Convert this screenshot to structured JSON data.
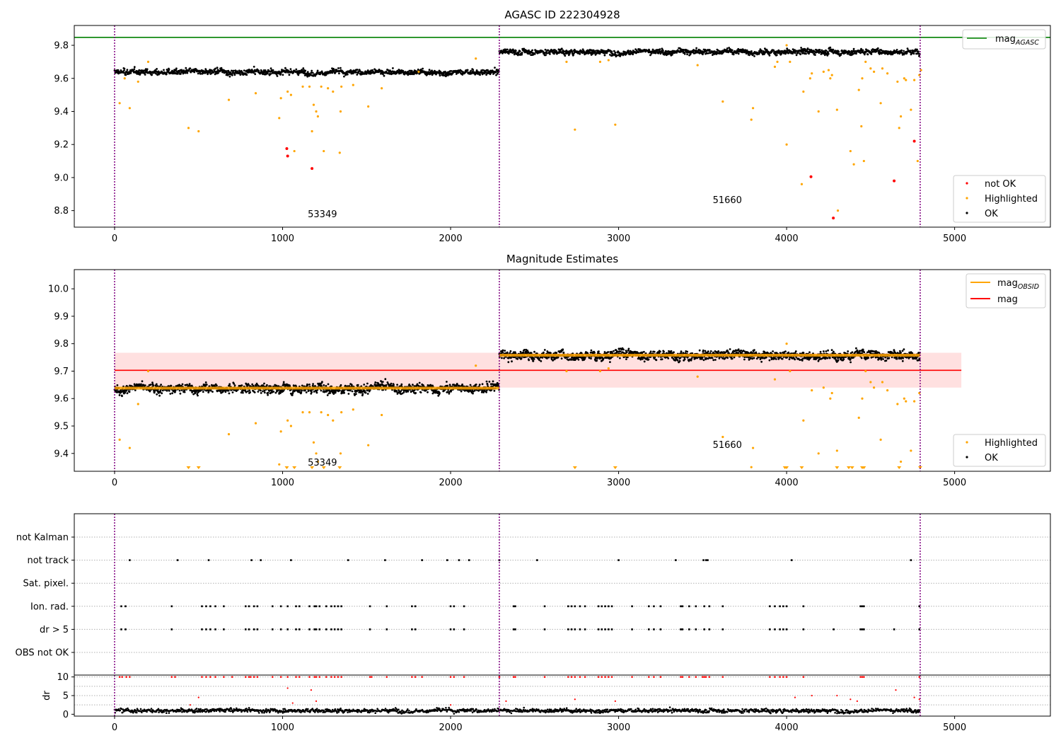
{
  "chart_data": [
    {
      "type": "scatter",
      "title": "AGASC ID 222304928",
      "xlim": [
        -240,
        5570
      ],
      "ylim": [
        8.7,
        9.92
      ],
      "xticks": [
        0,
        1000,
        2000,
        3000,
        4000,
        5000
      ],
      "yticks": [
        8.8,
        9.0,
        9.2,
        9.4,
        9.6,
        9.8
      ],
      "ytick_labels": [
        "8.8",
        "9.0",
        "9.2",
        "9.4",
        "9.6",
        "9.8"
      ],
      "grid": false,
      "vlines": [
        0,
        2290,
        4795
      ],
      "obsids": [
        {
          "label": "53349",
          "x": 1150,
          "y": 8.76
        },
        {
          "label": "51660",
          "x": 3560,
          "y": 8.845
        }
      ],
      "mag_agasc": 9.848,
      "segments": [
        {
          "x0": 0,
          "x1": 2290,
          "mean": 9.638
        },
        {
          "x0": 2290,
          "x1": 4795,
          "mean": 9.762
        }
      ],
      "series": [
        {
          "name": "not OK",
          "color": "#ff0000",
          "points": [
            [
              1025,
              9.175
            ],
            [
              1030,
              9.13
            ],
            [
              1175,
              9.055
            ],
            [
              4145,
              9.005
            ],
            [
              4278,
              8.755
            ],
            [
              4640,
              8.98
            ],
            [
              4760,
              9.22
            ]
          ]
        },
        {
          "name": "Highlighted",
          "color": "#ffa500",
          "points": [
            [
              30,
              9.45
            ],
            [
              90,
              9.42
            ],
            [
              60,
              9.6
            ],
            [
              140,
              9.58
            ],
            [
              200,
              9.7
            ],
            [
              440,
              9.3
            ],
            [
              500,
              9.28
            ],
            [
              680,
              9.47
            ],
            [
              840,
              9.51
            ],
            [
              980,
              9.36
            ],
            [
              990,
              9.48
            ],
            [
              1030,
              9.52
            ],
            [
              1050,
              9.5
            ],
            [
              1070,
              9.16
            ],
            [
              1120,
              9.55
            ],
            [
              1160,
              9.55
            ],
            [
              1175,
              9.28
            ],
            [
              1185,
              9.44
            ],
            [
              1200,
              9.4
            ],
            [
              1210,
              9.37
            ],
            [
              1230,
              9.55
            ],
            [
              1245,
              9.16
            ],
            [
              1270,
              9.54
            ],
            [
              1300,
              9.52
            ],
            [
              1340,
              9.15
            ],
            [
              1345,
              9.4
            ],
            [
              1350,
              9.55
            ],
            [
              1420,
              9.56
            ],
            [
              1510,
              9.43
            ],
            [
              1590,
              9.54
            ],
            [
              1810,
              9.64
            ],
            [
              2150,
              9.72
            ],
            [
              2690,
              9.7
            ],
            [
              2740,
              9.29
            ],
            [
              2890,
              9.7
            ],
            [
              2940,
              9.71
            ],
            [
              2980,
              9.32
            ],
            [
              3470,
              9.68
            ],
            [
              3620,
              9.46
            ],
            [
              3790,
              9.35
            ],
            [
              3800,
              9.42
            ],
            [
              3930,
              9.67
            ],
            [
              3945,
              9.7
            ],
            [
              4000,
              9.8
            ],
            [
              4000,
              9.2
            ],
            [
              4020,
              9.7
            ],
            [
              4090,
              8.96
            ],
            [
              4100,
              9.52
            ],
            [
              4140,
              9.6
            ],
            [
              4150,
              9.63
            ],
            [
              4190,
              9.4
            ],
            [
              4220,
              9.64
            ],
            [
              4250,
              9.65
            ],
            [
              4260,
              9.6
            ],
            [
              4270,
              9.62
            ],
            [
              4300,
              9.41
            ],
            [
              4305,
              8.8
            ],
            [
              4380,
              9.16
            ],
            [
              4400,
              9.08
            ],
            [
              4430,
              9.53
            ],
            [
              4445,
              9.31
            ],
            [
              4450,
              9.6
            ],
            [
              4460,
              9.1
            ],
            [
              4470,
              9.7
            ],
            [
              4500,
              9.66
            ],
            [
              4520,
              9.64
            ],
            [
              4560,
              9.45
            ],
            [
              4570,
              9.66
            ],
            [
              4600,
              9.63
            ],
            [
              4660,
              9.58
            ],
            [
              4670,
              9.3
            ],
            [
              4680,
              9.37
            ],
            [
              4700,
              9.6
            ],
            [
              4710,
              9.59
            ],
            [
              4740,
              9.41
            ],
            [
              4760,
              9.59
            ],
            [
              4780,
              9.1
            ],
            [
              4790,
              9.62
            ],
            [
              4800,
              9.65
            ]
          ]
        },
        {
          "name": "OK",
          "color": "#000000",
          "note": "dense band; generated from segment means"
        }
      ],
      "legend": {
        "placement": "lower-right",
        "entries": [
          "not OK",
          "Highlighted",
          "OK"
        ]
      },
      "legend_top": {
        "placement": "upper-right",
        "label": "mag",
        "sub": "AGASC"
      }
    },
    {
      "type": "scatter",
      "title": "Magnitude Estimates",
      "xlim": [
        -240,
        5570
      ],
      "ylim": [
        9.335,
        10.07
      ],
      "xticks": [
        0,
        1000,
        2000,
        3000,
        4000,
        5000
      ],
      "yticks": [
        9.4,
        9.5,
        9.6,
        9.7,
        9.8,
        9.9,
        10.0
      ],
      "ytick_labels": [
        "9.4",
        "9.5",
        "9.6",
        "9.7",
        "9.8",
        "9.9",
        "10.0"
      ],
      "grid": false,
      "vlines": [
        0,
        2290,
        4795
      ],
      "obsids": [
        {
          "label": "53349",
          "x": 1150,
          "y": 9.355
        },
        {
          "label": "51660",
          "x": 3560,
          "y": 9.42
        }
      ],
      "mag": 9.703,
      "mag_band": [
        9.64,
        9.767
      ],
      "mag_band_xlim": [
        0,
        5040
      ],
      "segments": [
        {
          "x0": 0,
          "x1": 2290,
          "mean": 9.638
        },
        {
          "x0": 2290,
          "x1": 4795,
          "mean": 9.758
        }
      ],
      "offscale_markers": [
        440,
        500,
        1025,
        1070,
        1175,
        1245,
        1340,
        2740,
        2980,
        3990,
        4000,
        4090,
        4300,
        4370,
        4390,
        4450,
        4460,
        4670,
        4795
      ],
      "series": [
        {
          "name": "Highlighted",
          "color": "#ffa500",
          "points": [
            [
              30,
              9.45
            ],
            [
              90,
              9.42
            ],
            [
              140,
              9.58
            ],
            [
              200,
              9.7
            ],
            [
              680,
              9.47
            ],
            [
              840,
              9.51
            ],
            [
              980,
              9.36
            ],
            [
              990,
              9.48
            ],
            [
              1030,
              9.52
            ],
            [
              1050,
              9.5
            ],
            [
              1120,
              9.55
            ],
            [
              1160,
              9.55
            ],
            [
              1185,
              9.44
            ],
            [
              1200,
              9.4
            ],
            [
              1210,
              9.37
            ],
            [
              1230,
              9.55
            ],
            [
              1270,
              9.54
            ],
            [
              1300,
              9.52
            ],
            [
              1345,
              9.4
            ],
            [
              1350,
              9.55
            ],
            [
              1420,
              9.56
            ],
            [
              1510,
              9.43
            ],
            [
              1590,
              9.54
            ],
            [
              2150,
              9.72
            ],
            [
              2690,
              9.7
            ],
            [
              2890,
              9.7
            ],
            [
              2940,
              9.71
            ],
            [
              3470,
              9.68
            ],
            [
              3620,
              9.46
            ],
            [
              3790,
              9.35
            ],
            [
              3800,
              9.42
            ],
            [
              3930,
              9.67
            ],
            [
              4000,
              9.8
            ],
            [
              4020,
              9.7
            ],
            [
              4100,
              9.52
            ],
            [
              4150,
              9.63
            ],
            [
              4190,
              9.4
            ],
            [
              4220,
              9.64
            ],
            [
              4260,
              9.6
            ],
            [
              4270,
              9.62
            ],
            [
              4300,
              9.41
            ],
            [
              4430,
              9.53
            ],
            [
              4450,
              9.6
            ],
            [
              4470,
              9.7
            ],
            [
              4500,
              9.66
            ],
            [
              4520,
              9.64
            ],
            [
              4560,
              9.45
            ],
            [
              4570,
              9.66
            ],
            [
              4600,
              9.63
            ],
            [
              4660,
              9.58
            ],
            [
              4680,
              9.37
            ],
            [
              4700,
              9.6
            ],
            [
              4710,
              9.59
            ],
            [
              4740,
              9.41
            ],
            [
              4760,
              9.59
            ],
            [
              4790,
              9.62
            ]
          ]
        },
        {
          "name": "OK",
          "color": "#000000",
          "note": "dense band; generated from segment means"
        }
      ],
      "legend": {
        "placement": "lower-right",
        "entries": [
          "Highlighted",
          "OK"
        ]
      },
      "legend_top": {
        "placement": "upper-right",
        "entries": [
          {
            "label": "mag",
            "sub": "OBSID",
            "color": "#ffa500"
          },
          {
            "label": "mag",
            "sub": "",
            "color": "#ff0000"
          }
        ]
      }
    },
    {
      "type": "scatter",
      "title": "",
      "xlim": [
        -240,
        5570
      ],
      "xticks": [
        0,
        1000,
        2000,
        3000,
        4000,
        5000
      ],
      "vlines": [
        0,
        2290,
        4795
      ],
      "flag_rows": [
        "not Kalman",
        "not track",
        "Sat. pixel.",
        "Ion. rad.",
        "dr > 5",
        "OBS not OK"
      ],
      "flags": {
        "not track": [
          90,
          375,
          560,
          815,
          870,
          1050,
          1390,
          1610,
          1830,
          1980,
          2050,
          2110,
          2290,
          2515,
          3000,
          3340,
          3505,
          3520,
          3530,
          4030,
          4740
        ],
        "Ion. rad.": [
          40,
          65,
          340,
          520,
          545,
          570,
          600,
          650,
          780,
          800,
          830,
          850,
          940,
          990,
          1030,
          1080,
          1100,
          1160,
          1190,
          1200,
          1220,
          1260,
          1290,
          1310,
          1330,
          1350,
          1520,
          1620,
          1770,
          1790,
          2000,
          2020,
          2080,
          2375,
          2385,
          2560,
          2700,
          2720,
          2740,
          2770,
          2800,
          2880,
          2900,
          2920,
          2940,
          2960,
          3080,
          3180,
          3210,
          3250,
          3370,
          3380,
          3420,
          3460,
          3510,
          3540,
          3620,
          3900,
          3930,
          3960,
          3980,
          4000,
          4100,
          4440,
          4450,
          4460,
          4790
        ],
        "dr > 5": [
          40,
          65,
          340,
          520,
          545,
          570,
          600,
          650,
          780,
          800,
          830,
          850,
          940,
          990,
          1030,
          1080,
          1100,
          1160,
          1190,
          1200,
          1220,
          1260,
          1290,
          1310,
          1330,
          1350,
          1520,
          1620,
          1770,
          1790,
          2000,
          2020,
          2080,
          2375,
          2385,
          2560,
          2700,
          2720,
          2740,
          2770,
          2800,
          2880,
          2900,
          2920,
          2940,
          2960,
          3080,
          3180,
          3210,
          3250,
          3370,
          3380,
          3420,
          3460,
          3510,
          3540,
          3620,
          3900,
          3930,
          3960,
          3980,
          4000,
          4100,
          4280,
          4440,
          4450,
          4460,
          4640,
          4790
        ]
      },
      "dr_ylabel": "dr",
      "dr_ylim": [
        -0.5,
        10.5
      ],
      "dr_yticks": [
        0,
        5,
        10
      ],
      "dr_ytick_labels": [
        "0",
        "5",
        "10"
      ],
      "dr_outliers": [
        [
          450,
          2.5
        ],
        [
          500,
          4.5
        ],
        [
          1030,
          7
        ],
        [
          1060,
          3
        ],
        [
          1170,
          6.5
        ],
        [
          1200,
          3.5
        ],
        [
          2000,
          2.5
        ],
        [
          2330,
          3.5
        ],
        [
          2740,
          4
        ],
        [
          2980,
          3.5
        ],
        [
          4050,
          4.5
        ],
        [
          4150,
          5
        ],
        [
          4300,
          5
        ],
        [
          4380,
          4
        ],
        [
          4420,
          3.5
        ],
        [
          4650,
          6.5
        ],
        [
          4760,
          4.5
        ],
        [
          4790,
          4
        ]
      ],
      "dr_capped": [
        30,
        45,
        70,
        90,
        340,
        360,
        520,
        545,
        570,
        600,
        650,
        700,
        780,
        800,
        810,
        830,
        850,
        940,
        990,
        1030,
        1080,
        1100,
        1160,
        1190,
        1200,
        1220,
        1260,
        1290,
        1310,
        1330,
        1350,
        1520,
        1530,
        1620,
        1770,
        1790,
        1830,
        2000,
        2020,
        2080,
        2290,
        2375,
        2385,
        2560,
        2700,
        2720,
        2740,
        2770,
        2800,
        2880,
        2900,
        2920,
        2940,
        2960,
        3080,
        3180,
        3210,
        3250,
        3370,
        3380,
        3420,
        3460,
        3500,
        3510,
        3520,
        3540,
        3620,
        3900,
        3930,
        3960,
        3980,
        4000,
        4100,
        4440,
        4450,
        4460,
        4790
      ]
    }
  ]
}
